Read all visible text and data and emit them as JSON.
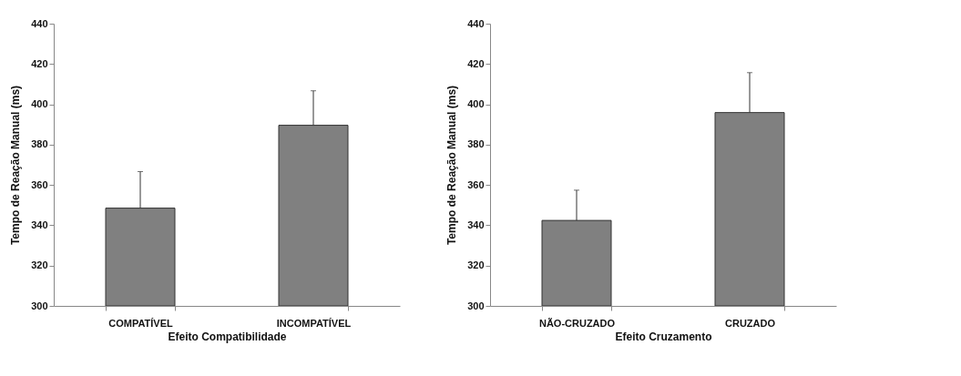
{
  "chart_data": [
    {
      "type": "bar",
      "xlabel": "Efeito Compatibilidade",
      "ylabel": "Tempo de Reação Manual (ms)",
      "categories": [
        "COMPATÍVEL",
        "INCOMPATÍVEL"
      ],
      "values": [
        348.5,
        389.6
      ],
      "errors": [
        [
          348.5,
          366.6
        ],
        [
          389.6,
          406.7
        ]
      ],
      "color": "#808080",
      "ylim": [
        300,
        440
      ],
      "yticks": [
        300,
        320,
        340,
        360,
        380,
        400,
        420,
        440
      ],
      "grid": false
    },
    {
      "type": "bar",
      "xlabel": "Efeito Cruzamento",
      "ylabel": "Tempo de Reação Manual (ms)",
      "categories": [
        "NÃO-CRUZADO",
        "CRUZADO"
      ],
      "values": [
        342.4,
        395.9
      ],
      "errors": [
        [
          342.4,
          357.4
        ],
        [
          395.9,
          415.7
        ]
      ],
      "color": "#808080",
      "ylim": [
        300,
        440
      ],
      "yticks": [
        300,
        320,
        340,
        360,
        380,
        400,
        420,
        440
      ],
      "grid": false
    }
  ]
}
